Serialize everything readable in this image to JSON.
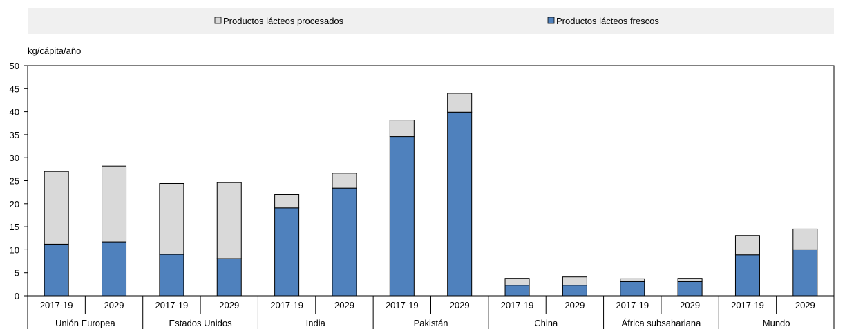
{
  "chart_data": {
    "type": "bar",
    "stacked": true,
    "ylabel": "kg/cápita/año",
    "ylim": [
      0,
      50
    ],
    "yticks": [
      0,
      5,
      10,
      15,
      20,
      25,
      30,
      35,
      40,
      45,
      50
    ],
    "grid": false,
    "legend_position": "top",
    "groups": [
      {
        "name": "Unión Europea",
        "periods": [
          "2017-19",
          "2029"
        ]
      },
      {
        "name": "Estados Unidos",
        "periods": [
          "2017-19",
          "2029"
        ]
      },
      {
        "name": "India",
        "periods": [
          "2017-19",
          "2029"
        ]
      },
      {
        "name": "Pakistán",
        "periods": [
          "2017-19",
          "2029"
        ]
      },
      {
        "name": "China",
        "periods": [
          "2017-19",
          "2029"
        ]
      },
      {
        "name": "África subsahariana",
        "periods": [
          "2017-19",
          "2029"
        ]
      },
      {
        "name": "Mundo",
        "periods": [
          "2017-19",
          "2029"
        ]
      }
    ],
    "series": [
      {
        "name": "Productos lácteos frescos",
        "color": "#4f81bd",
        "values": [
          11.2,
          11.7,
          9.0,
          8.1,
          19.1,
          23.4,
          34.6,
          39.9,
          2.3,
          2.3,
          3.1,
          3.1,
          8.9,
          10.0
        ]
      },
      {
        "name": "Productos lácteos procesados",
        "color": "#d9d9d9",
        "values": [
          15.8,
          16.5,
          15.4,
          16.5,
          2.9,
          3.2,
          3.6,
          4.1,
          1.5,
          1.8,
          0.6,
          0.7,
          4.2,
          4.5
        ]
      }
    ]
  }
}
